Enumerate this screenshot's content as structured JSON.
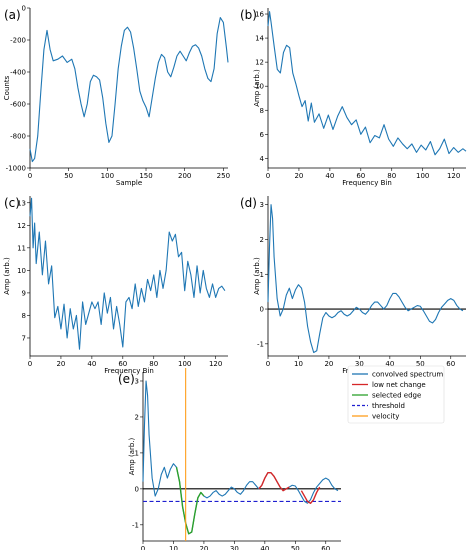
{
  "chart_data": [
    {
      "panel": "(a)",
      "type": "line",
      "xlabel": "Sample",
      "ylabel": "Counts",
      "xlim": [
        0,
        256
      ],
      "ylim": [
        -1000,
        0
      ],
      "xticks": [
        0,
        50,
        100,
        150,
        200,
        250
      ],
      "yticks": [
        -1000,
        -800,
        -600,
        -400,
        -200,
        0
      ],
      "series": [
        {
          "color": "#1f77b4",
          "x": [
            0,
            3,
            6,
            10,
            14,
            18,
            22,
            26,
            30,
            36,
            42,
            48,
            54,
            58,
            62,
            66,
            70,
            74,
            78,
            82,
            86,
            90,
            94,
            98,
            102,
            106,
            110,
            114,
            118,
            122,
            126,
            130,
            134,
            138,
            142,
            146,
            150,
            154,
            158,
            162,
            166,
            170,
            174,
            178,
            182,
            186,
            190,
            194,
            198,
            202,
            206,
            210,
            214,
            218,
            222,
            226,
            230,
            234,
            238,
            242,
            246,
            250,
            254,
            256
          ],
          "y": [
            -880,
            -960,
            -940,
            -800,
            -520,
            -260,
            -140,
            -260,
            -330,
            -320,
            -300,
            -340,
            -320,
            -380,
            -500,
            -600,
            -680,
            -600,
            -460,
            -420,
            -430,
            -450,
            -560,
            -720,
            -840,
            -800,
            -600,
            -380,
            -240,
            -140,
            -120,
            -150,
            -250,
            -380,
            -520,
            -580,
            -620,
            -680,
            -560,
            -440,
            -340,
            -290,
            -310,
            -400,
            -430,
            -370,
            -300,
            -270,
            -300,
            -330,
            -280,
            -240,
            -230,
            -250,
            -300,
            -380,
            -440,
            -460,
            -380,
            -160,
            -60,
            -90,
            -250,
            -340
          ]
        }
      ]
    },
    {
      "panel": "(b)",
      "type": "line",
      "xlabel": "Frequency Bin",
      "ylabel": "Amp (arb.)",
      "xlim": [
        0,
        128
      ],
      "ylim": [
        3.2,
        16.5
      ],
      "xticks": [
        0,
        20,
        40,
        60,
        80,
        100,
        120
      ],
      "yticks": [
        4,
        6,
        8,
        10,
        12,
        14,
        16
      ],
      "series": [
        {
          "color": "#1f77b4",
          "x": [
            0,
            1,
            2,
            4,
            6,
            8,
            10,
            12,
            14,
            16,
            18,
            20,
            22,
            24,
            26,
            28,
            30,
            33,
            36,
            39,
            42,
            45,
            48,
            51,
            54,
            57,
            60,
            63,
            66,
            69,
            72,
            75,
            78,
            81,
            84,
            87,
            90,
            93,
            96,
            99,
            102,
            105,
            108,
            111,
            114,
            117,
            120,
            123,
            126,
            128
          ],
          "y": [
            15.0,
            16.2,
            15.3,
            13.3,
            11.4,
            11.1,
            12.8,
            13.4,
            13.2,
            11.1,
            10.2,
            9.2,
            8.3,
            8.8,
            7.1,
            8.6,
            7.0,
            7.7,
            6.5,
            7.6,
            6.4,
            7.5,
            8.3,
            7.4,
            6.8,
            7.2,
            6.0,
            6.6,
            5.3,
            5.9,
            5.7,
            6.8,
            5.6,
            5.0,
            5.7,
            5.2,
            4.8,
            5.2,
            4.5,
            5.1,
            4.7,
            5.4,
            4.3,
            4.8,
            5.6,
            4.4,
            4.9,
            4.5,
            4.8,
            4.6
          ]
        }
      ]
    },
    {
      "panel": "(c)",
      "type": "line",
      "xlabel": "Frequency Bin",
      "ylabel": "Amp (arb.)",
      "xlim": [
        0,
        128
      ],
      "ylim": [
        6.2,
        13.3
      ],
      "xticks": [
        0,
        20,
        40,
        60,
        80,
        100,
        120
      ],
      "yticks": [
        7,
        8,
        9,
        10,
        11,
        12,
        13
      ],
      "series": [
        {
          "color": "#1f77b4",
          "x": [
            0,
            1,
            2,
            3,
            4,
            6,
            8,
            10,
            12,
            14,
            16,
            18,
            20,
            22,
            24,
            26,
            28,
            30,
            32,
            34,
            36,
            38,
            40,
            42,
            44,
            46,
            48,
            50,
            52,
            54,
            56,
            58,
            60,
            62,
            64,
            66,
            68,
            70,
            72,
            74,
            76,
            78,
            80,
            82,
            84,
            86,
            88,
            90,
            92,
            94,
            96,
            98,
            100,
            102,
            104,
            106,
            108,
            110,
            112,
            114,
            116,
            118,
            120,
            122,
            124,
            126
          ],
          "y": [
            12.4,
            13.2,
            11.0,
            12.1,
            10.3,
            11.7,
            9.8,
            11.3,
            9.4,
            10.2,
            7.9,
            8.4,
            7.4,
            8.5,
            7.0,
            8.3,
            7.4,
            8.0,
            6.5,
            8.6,
            7.6,
            8.1,
            8.6,
            8.3,
            8.6,
            7.6,
            9.0,
            8.1,
            8.8,
            7.4,
            8.4,
            7.6,
            6.6,
            8.6,
            8.8,
            8.3,
            9.4,
            8.4,
            9.2,
            8.6,
            9.6,
            9.1,
            9.8,
            8.8,
            10.0,
            9.2,
            10.0,
            11.7,
            11.3,
            11.6,
            10.6,
            10.8,
            9.1,
            10.4,
            9.8,
            8.8,
            10.2,
            9.0,
            10.0,
            9.2,
            8.8,
            9.4,
            8.8,
            9.2,
            9.3,
            9.1
          ]
        }
      ]
    },
    {
      "panel": "(d)",
      "type": "line",
      "xlabel": "Frequency Bin",
      "ylabel": "Amp (arb.)",
      "xlim": [
        0,
        65
      ],
      "ylim": [
        -1.35,
        3.25
      ],
      "xticks": [
        0,
        10,
        20,
        30,
        40,
        50,
        60
      ],
      "yticks": [
        -1,
        0,
        1,
        2,
        3
      ],
      "baseline": 0,
      "series": [
        {
          "color": "#1f77b4",
          "x": [
            0,
            0.5,
            1,
            1.5,
            2,
            3,
            4,
            5,
            6,
            7,
            8,
            9,
            10,
            11,
            12,
            13,
            14,
            15,
            16,
            17,
            18,
            19,
            20,
            21,
            22,
            23,
            24,
            25,
            26,
            27,
            28,
            29,
            30,
            31,
            32,
            33,
            34,
            35,
            36,
            37,
            38,
            39,
            40,
            41,
            42,
            43,
            44,
            45,
            46,
            47,
            48,
            49,
            50,
            51,
            52,
            53,
            54,
            55,
            56,
            57,
            58,
            59,
            60,
            61,
            62,
            63,
            64
          ],
          "y": [
            0.2,
            1.8,
            3.0,
            2.6,
            1.5,
            0.3,
            -0.2,
            0.0,
            0.4,
            0.6,
            0.3,
            0.55,
            0.7,
            0.6,
            0.2,
            -0.5,
            -0.95,
            -1.25,
            -1.2,
            -0.7,
            -0.25,
            -0.1,
            -0.2,
            -0.25,
            -0.2,
            -0.1,
            -0.05,
            -0.15,
            -0.2,
            -0.15,
            -0.05,
            0.05,
            0.0,
            -0.1,
            -0.15,
            -0.05,
            0.1,
            0.2,
            0.2,
            0.1,
            0.0,
            0.1,
            0.3,
            0.45,
            0.45,
            0.35,
            0.2,
            0.05,
            -0.05,
            0.0,
            0.05,
            0.1,
            0.08,
            -0.05,
            -0.2,
            -0.35,
            -0.4,
            -0.3,
            -0.1,
            0.05,
            0.15,
            0.25,
            0.3,
            0.25,
            0.1,
            0.0,
            -0.05
          ]
        }
      ]
    },
    {
      "panel": "(e)",
      "type": "line",
      "xlabel": "Frequency Bin",
      "ylabel": "Amp (arb.)",
      "xlim": [
        0,
        65
      ],
      "ylim": [
        -1.45,
        3.25
      ],
      "xticks": [
        0,
        10,
        20,
        30,
        40,
        50,
        60
      ],
      "yticks": [
        -1,
        0,
        1,
        2,
        3
      ],
      "baseline": 0,
      "threshold": -0.35,
      "velocity": 14,
      "legend": "top-right",
      "legend_entries": [
        {
          "label": "convolved spectrum",
          "color": "#1f77b4",
          "style": "solid"
        },
        {
          "label": "low net change",
          "color": "#d62728",
          "style": "solid"
        },
        {
          "label": "selected edge",
          "color": "#2ca02c",
          "style": "solid"
        },
        {
          "label": "threshold",
          "color": "#1f1fd0",
          "style": "dashed"
        },
        {
          "label": "velocity",
          "color": "#ff9f1c",
          "style": "solid"
        }
      ],
      "series": [
        {
          "name": "convolved spectrum",
          "color": "#1f77b4",
          "x": [
            0,
            0.5,
            1,
            1.5,
            2,
            3,
            4,
            5,
            6,
            7,
            8,
            9,
            10,
            11,
            12,
            13,
            14,
            15,
            16,
            17,
            18,
            19,
            20,
            21,
            22,
            23,
            24,
            25,
            26,
            27,
            28,
            29,
            30,
            31,
            32,
            33,
            34,
            35,
            36,
            37,
            38,
            39,
            40,
            41,
            42,
            43,
            44,
            45,
            46,
            47,
            48,
            49,
            50,
            51,
            52,
            53,
            54,
            55,
            56,
            57,
            58,
            59,
            60,
            61,
            62,
            63,
            64
          ],
          "y": [
            0.2,
            1.8,
            3.0,
            2.6,
            1.5,
            0.3,
            -0.2,
            0.0,
            0.4,
            0.6,
            0.3,
            0.55,
            0.7,
            0.6,
            0.2,
            -0.5,
            -0.95,
            -1.25,
            -1.2,
            -0.7,
            -0.25,
            -0.1,
            -0.2,
            -0.25,
            -0.2,
            -0.1,
            -0.05,
            -0.15,
            -0.2,
            -0.15,
            -0.05,
            0.05,
            0.0,
            -0.1,
            -0.15,
            -0.05,
            0.1,
            0.2,
            0.2,
            0.1,
            0.0,
            0.1,
            0.3,
            0.45,
            0.45,
            0.35,
            0.2,
            0.05,
            -0.05,
            0.0,
            0.05,
            0.1,
            0.08,
            -0.05,
            -0.2,
            -0.35,
            -0.4,
            -0.3,
            -0.1,
            0.05,
            0.15,
            0.25,
            0.3,
            0.25,
            0.1,
            0.0,
            -0.05
          ]
        },
        {
          "name": "selected edge",
          "color": "#2ca02c",
          "x": [
            11,
            12,
            13,
            14,
            15,
            16,
            17,
            18,
            19,
            20
          ],
          "y": [
            0.6,
            0.2,
            -0.5,
            -0.95,
            -1.25,
            -1.2,
            -0.7,
            -0.25,
            -0.1,
            -0.2
          ]
        },
        {
          "name": "low net change",
          "color": "#d62728",
          "x": [
            38,
            39,
            40,
            41,
            42,
            43,
            44,
            45,
            46,
            47,
            48
          ],
          "y": [
            0.0,
            0.1,
            0.3,
            0.45,
            0.45,
            0.35,
            0.2,
            0.05,
            -0.05,
            0.0,
            0.05
          ]
        },
        {
          "name": "low net change",
          "color": "#d62728",
          "x": [
            52,
            53,
            54,
            55,
            56,
            57,
            58
          ],
          "y": [
            -0.05,
            -0.2,
            -0.35,
            -0.4,
            -0.3,
            -0.1,
            0.05
          ]
        }
      ]
    }
  ]
}
